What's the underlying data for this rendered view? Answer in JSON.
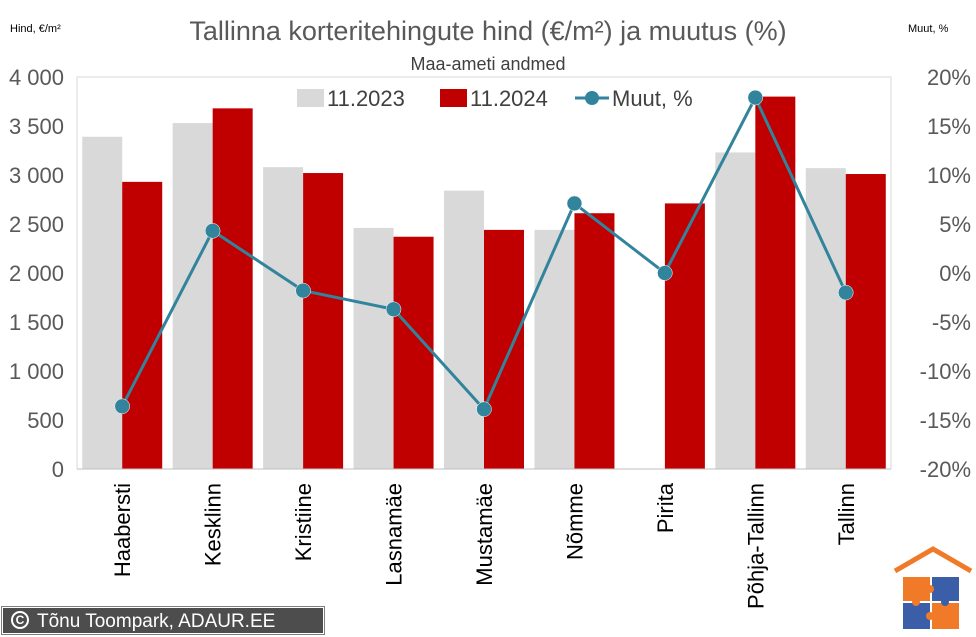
{
  "chart_data": {
    "type": "bar",
    "title": "Tallinna korteritehingute hind (€/m²) ja muutus (%)",
    "subtitle": "Maa-ameti andmed",
    "ylabel": "Hind, €/m²",
    "y2label": "Muut, %",
    "ylim": [
      0,
      4000
    ],
    "y2lim": [
      -20,
      20
    ],
    "yticks": [
      "0",
      "500",
      "1 000",
      "1 500",
      "2 000",
      "2 500",
      "3 000",
      "3 500",
      "4 000"
    ],
    "y2ticks": [
      "-20%",
      "-15%",
      "-10%",
      "-5%",
      "0%",
      "5%",
      "10%",
      "15%",
      "20%"
    ],
    "categories": [
      "Haabersti",
      "Kesklinn",
      "Kristiine",
      "Lasnamäe",
      "Mustamäe",
      "Nõmme",
      "Pirita",
      "Põhja-Tallinn",
      "Tallinn"
    ],
    "series": [
      {
        "name": "11.2023",
        "type": "bar",
        "axis": "left",
        "color": "#d9d9d9",
        "values": [
          3390,
          3530,
          3080,
          2460,
          2840,
          2440,
          null,
          3230,
          3070
        ]
      },
      {
        "name": "11.2024",
        "type": "bar",
        "axis": "left",
        "color": "#c00000",
        "values": [
          2930,
          3680,
          3020,
          2370,
          2440,
          2610,
          2710,
          3800,
          3010
        ]
      },
      {
        "name": "Muut, %",
        "type": "line",
        "axis": "right",
        "color": "#31849b",
        "values": [
          -13.6,
          4.3,
          -1.8,
          -3.7,
          -13.9,
          7.1,
          0.0,
          17.9,
          -2.0
        ]
      }
    ],
    "legend_position": "top",
    "grid": false
  },
  "credit": "Tõnu Toompark, ADAUR.EE",
  "credit_symbol": "C"
}
